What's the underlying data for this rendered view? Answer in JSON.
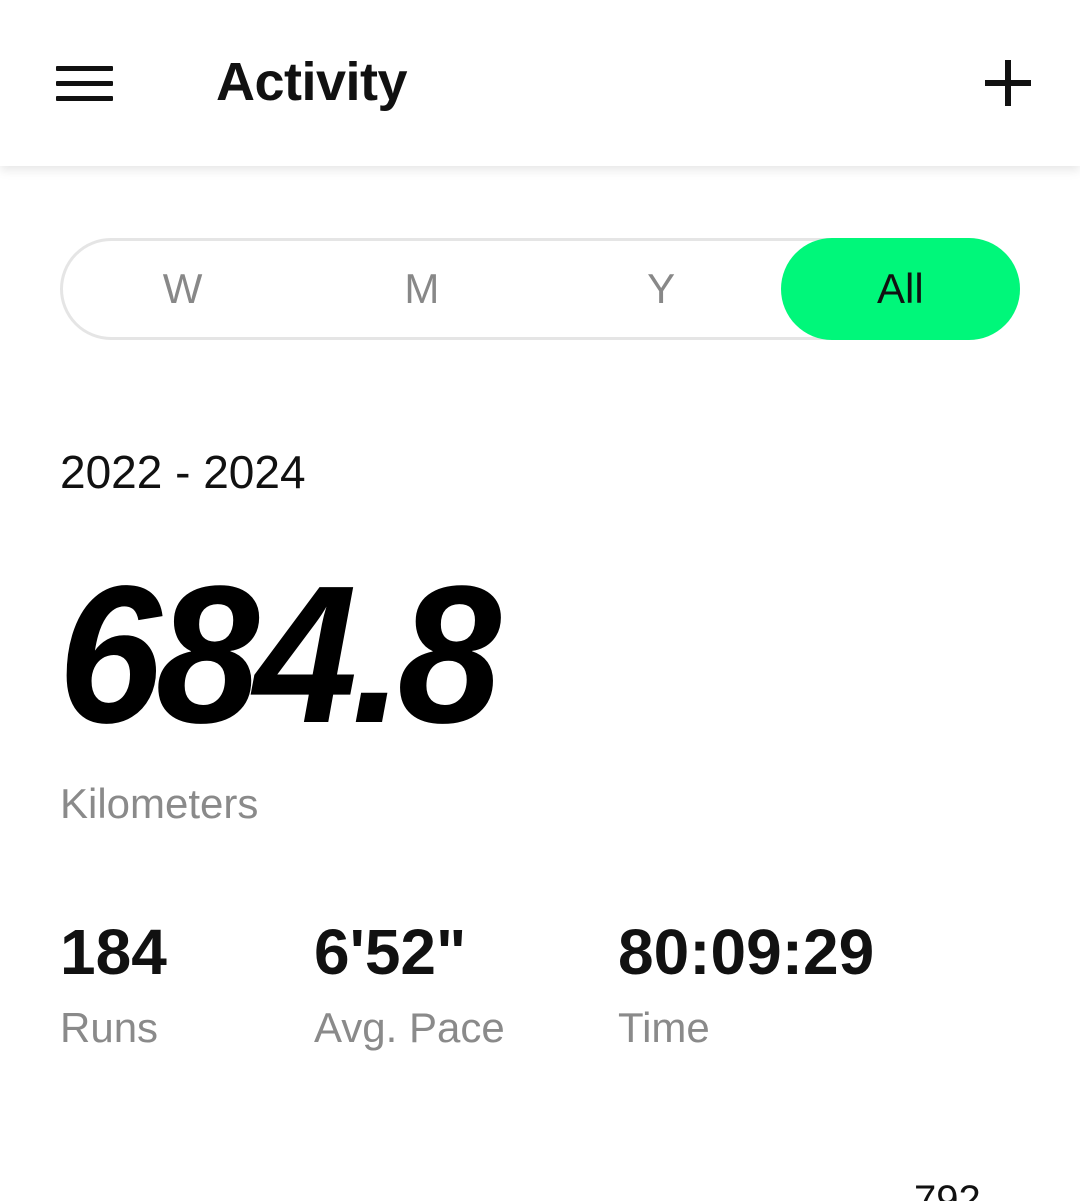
{
  "header": {
    "title": "Activity",
    "menu_icon": "hamburger-menu-icon",
    "add_icon": "plus-icon"
  },
  "period_tabs": {
    "items": [
      {
        "label": "W",
        "active": false
      },
      {
        "label": "M",
        "active": false
      },
      {
        "label": "Y",
        "active": false
      },
      {
        "label": "All",
        "active": true
      }
    ],
    "active_color": "#00f77a"
  },
  "summary": {
    "range": "2022 - 2024",
    "distance": "684.8",
    "distance_unit": "Kilometers"
  },
  "stats": {
    "runs_value": "184",
    "runs_label": "Runs",
    "pace_value": "6'52\"",
    "pace_label": "Avg. Pace",
    "time_value": "80:09:29",
    "time_label": "Time"
  },
  "chart_peek": {
    "value": "792"
  }
}
